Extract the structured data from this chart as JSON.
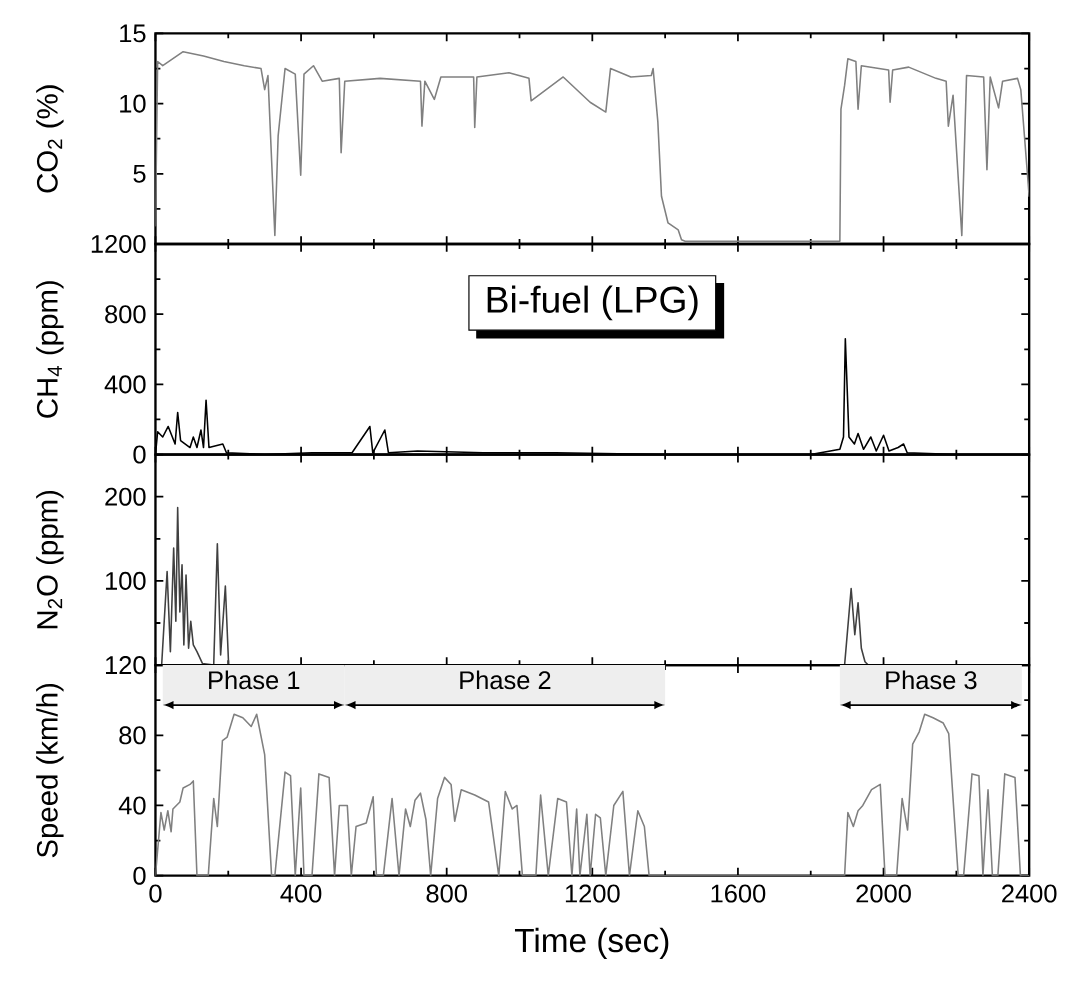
{
  "chart_data": [
    {
      "type": "line",
      "ylabel": "CO$_{2}$ (%)",
      "xlim": [
        0,
        2400
      ],
      "xticks": [
        0,
        400,
        800,
        1200,
        1600,
        2000,
        2400
      ],
      "ylim": [
        0,
        15
      ],
      "yticks": [
        {
          "value": 0,
          "label": null
        },
        5,
        10,
        15
      ],
      "tick_labels": "y",
      "series": [
        {
          "color": "#808080",
          "x": [
            0,
            6,
            20,
            76,
            132,
            188,
            244,
            290,
            300,
            309,
            328,
            337,
            356,
            384,
            399,
            408,
            434,
            458,
            505,
            510,
            520,
            617,
            728,
            732,
            740,
            766,
            784,
            874,
            877,
            883,
            971,
            1026,
            1032,
            1120,
            1194,
            1237,
            1250,
            1306,
            1362,
            1367,
            1380,
            1390,
            1408,
            1436,
            1445,
            1455,
            1623,
            1880,
            1883,
            1893,
            1902,
            1924,
            1930,
            1939,
            2014,
            2018,
            2025,
            2069,
            2144,
            2172,
            2178,
            2191,
            2215,
            2228,
            2275,
            2284,
            2293,
            2316,
            2327,
            2368,
            2377,
            2387,
            2400
          ],
          "values": [
            1.3,
            13,
            12.7,
            13.7,
            13.4,
            13,
            12.7,
            12.5,
            11,
            12,
            0.6,
            7.7,
            12.5,
            12.1,
            4.9,
            12.1,
            12.7,
            11.6,
            11.8,
            6.5,
            11.6,
            11.8,
            11.6,
            8.4,
            11.6,
            10.3,
            11.9,
            11.9,
            8.3,
            11.9,
            12.2,
            11.8,
            10.2,
            11.9,
            10.1,
            9.4,
            12.5,
            11.9,
            12,
            12.5,
            8.7,
            3.4,
            1.5,
            1.0,
            0.3,
            0.2,
            0.2,
            0.2,
            9.6,
            11.3,
            13.2,
            13,
            9.6,
            12.7,
            12.4,
            10.1,
            12.4,
            12.6,
            11.8,
            11.6,
            8.4,
            10.6,
            0.6,
            12,
            11.9,
            5.3,
            11.9,
            9.7,
            11.6,
            11.8,
            11,
            7.7,
            3.4
          ]
        }
      ]
    },
    {
      "type": "line",
      "ylabel": "CH$_{4}$ (ppm)",
      "xlim": [
        0,
        2400
      ],
      "xticks": [
        0,
        400,
        800,
        1200,
        1600,
        2000,
        2400
      ],
      "ylim": [
        0,
        1200
      ],
      "yticks": [
        0,
        400,
        800,
        1200
      ],
      "tick_labels": "y",
      "annotations": [
        "Bi-fuel (LPG)"
      ],
      "series": [
        {
          "color": "#000000",
          "x": [
            0,
            6,
            20,
            35,
            54,
            61,
            69,
            95,
            104,
            114,
            125,
            132,
            139,
            147,
            185,
            195,
            300,
            430,
            540,
            589,
            597,
            630,
            640,
            720,
            900,
            1100,
            1400,
            1800,
            1880,
            1890,
            1895,
            1905,
            1920,
            1930,
            1945,
            1965,
            1980,
            2000,
            2015,
            2040,
            2055,
            2065,
            2200,
            2400
          ],
          "values": [
            0,
            130,
            100,
            160,
            60,
            240,
            80,
            40,
            100,
            40,
            140,
            40,
            310,
            40,
            60,
            10,
            0,
            10,
            10,
            160,
            10,
            140,
            10,
            20,
            10,
            10,
            0,
            0,
            30,
            100,
            660,
            100,
            60,
            120,
            30,
            100,
            20,
            110,
            20,
            40,
            60,
            10,
            0,
            0
          ]
        }
      ]
    },
    {
      "type": "line",
      "ylabel": "N$_{2}$O (ppm)",
      "xlim": [
        0,
        2400
      ],
      "xticks": [
        0,
        400,
        800,
        1200,
        1600,
        2000,
        2400
      ],
      "ylim": [
        0,
        250
      ],
      "yticks": [
        {
          "value": 0,
          "label": null
        },
        100,
        200
      ],
      "tick_labels": "y",
      "series": [
        {
          "color": "#404040",
          "x": [
            0,
            17,
            32,
            41,
            50,
            56,
            61,
            67,
            73,
            78,
            84,
            91,
            97,
            104,
            114,
            129,
            160,
            170,
            179,
            192,
            201,
            1893,
            1911,
            1921,
            1930,
            1939,
            1949,
            1958,
            2400
          ],
          "values": [
            0,
            0,
            111,
            16,
            139,
            52,
            187,
            63,
            119,
            24,
            107,
            20,
            52,
            24,
            16,
            2,
            0,
            144,
            12,
            94,
            0,
            0,
            91,
            36,
            74,
            20,
            4,
            0,
            0
          ]
        }
      ]
    },
    {
      "type": "line",
      "ylabel": "Speed (km/h)",
      "xlabel": "Time (sec)",
      "xlim": [
        0,
        2400
      ],
      "xticks": [
        0,
        400,
        800,
        1200,
        1600,
        2000,
        2400
      ],
      "ylim": [
        0,
        120
      ],
      "yticks": [
        0,
        40,
        80,
        120
      ],
      "bands": [
        {
          "axis": "x",
          "from": 20,
          "to": 520,
          "label": "Phase 1"
        },
        {
          "axis": "x",
          "from": 520,
          "to": 1400,
          "label": "Phase 2"
        },
        {
          "axis": "x",
          "from": 1880,
          "to": 2380,
          "label": "Phase 3"
        }
      ],
      "series": [
        {
          "color": "#808080",
          "x": [
            0,
            15,
            24,
            34,
            43,
            48,
            67,
            76,
            95,
            104,
            114,
            145,
            160,
            170,
            184,
            197,
            216,
            240,
            263,
            278,
            300,
            319,
            328,
            356,
            371,
            384,
            399,
            408,
            430,
            449,
            477,
            492,
            505,
            527,
            538,
            551,
            579,
            598,
            607,
            626,
            650,
            669,
            687,
            700,
            713,
            728,
            743,
            756,
            775,
            794,
            812,
            822,
            840,
            877,
            915,
            943,
            961,
            980,
            993,
            1008,
            1045,
            1058,
            1079,
            1105,
            1129,
            1144,
            1157,
            1166,
            1185,
            1194,
            1209,
            1222,
            1237,
            1259,
            1284,
            1302,
            1325,
            1343,
            1356,
            1893,
            1902,
            1917,
            1930,
            1943,
            1967,
            1991,
            2004,
            2036,
            2051,
            2066,
            2080,
            2098,
            2113,
            2136,
            2164,
            2179,
            2205,
            2220,
            2243,
            2262,
            2273,
            2287,
            2299,
            2314,
            2333,
            2361,
            2376,
            2400
          ],
          "values": [
            0,
            36,
            26,
            37,
            25,
            38,
            42,
            50,
            52,
            54,
            0,
            0,
            44,
            28,
            77,
            79,
            92,
            90,
            85,
            92,
            69,
            0,
            0,
            59,
            57,
            0,
            50,
            0,
            0,
            58,
            56,
            0,
            40,
            40,
            0,
            28,
            30,
            45,
            0,
            0,
            44,
            0,
            38,
            28,
            43,
            47,
            32,
            0,
            44,
            56,
            52,
            31,
            49,
            46,
            42,
            0,
            48,
            38,
            40,
            0,
            0,
            46,
            0,
            44,
            42,
            0,
            38,
            0,
            35,
            0,
            35,
            33,
            0,
            40,
            48,
            0,
            37,
            28,
            0,
            0,
            36,
            28,
            37,
            40,
            49,
            52,
            0,
            0,
            44,
            26,
            75,
            82,
            92,
            90,
            87,
            81,
            0,
            0,
            58,
            57,
            0,
            49,
            0,
            0,
            58,
            56,
            0,
            0
          ]
        }
      ]
    }
  ]
}
